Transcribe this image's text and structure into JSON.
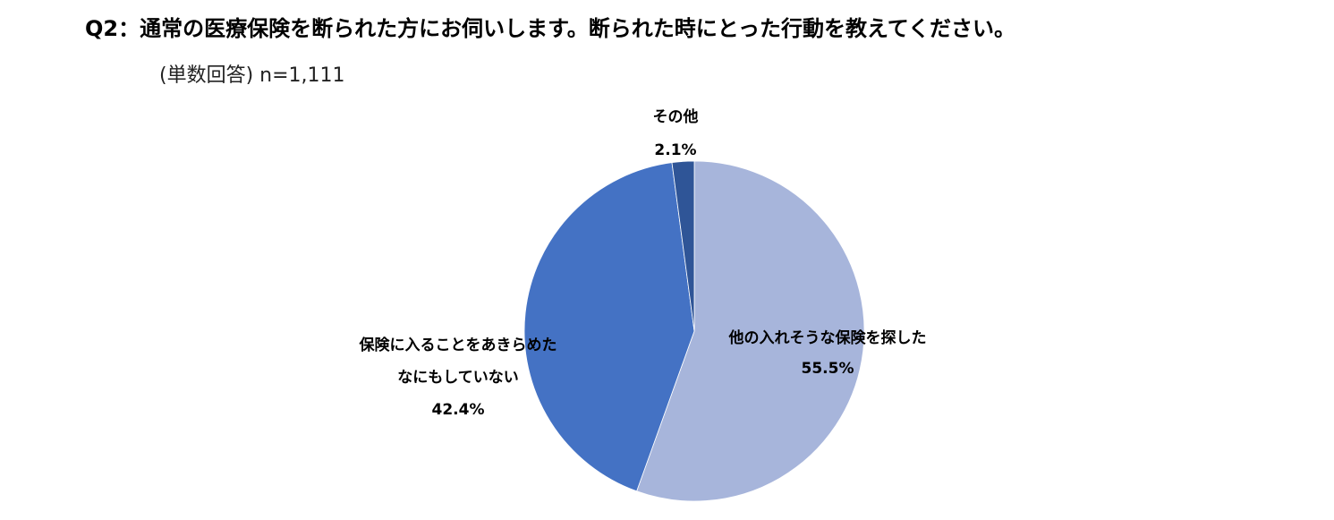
{
  "chart_data": {
    "type": "pie",
    "title": "Q2：通常の医療保険を断られた方にお伺いします。断られた時にとった行動を教えてください。",
    "subtitle": "(単数回答) n=1,111",
    "categories": [
      "他の入れそうな保険を探した",
      "保険に入ることをあきらめた\nなにもしていない",
      "その他"
    ],
    "values": [
      55.5,
      42.4,
      2.1
    ],
    "value_labels": [
      "55.5%",
      "42.4%",
      "2.1%"
    ],
    "colors": [
      "#a7b5db",
      "#4472c4",
      "#2f5597"
    ]
  }
}
